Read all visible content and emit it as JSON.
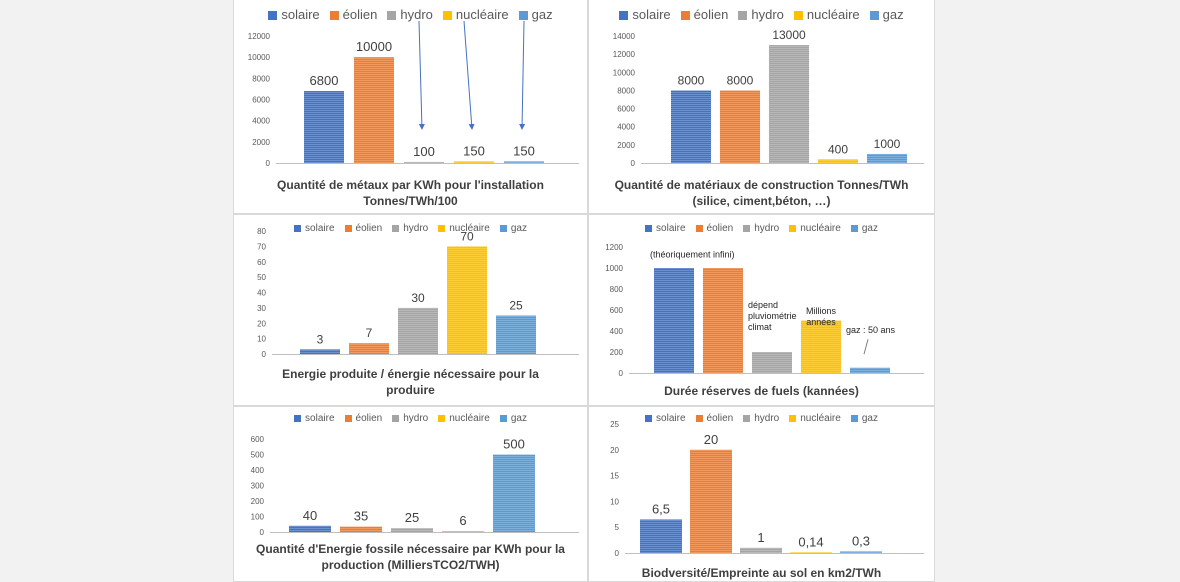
{
  "colors": {
    "solaire": "#4472c4",
    "eolien": "#ed7d31",
    "hydro": "#a5a5a5",
    "nucleaire": "#ffc000",
    "gaz": "#5b9bd5",
    "bar_stripe": "#ffffff",
    "arrow": "#4472c4"
  },
  "chart_data": [
    {
      "type": "bar",
      "title_lines": [
        "Quantité de métaux par KWh pour l'installation",
        "Tonnes/TWh/100"
      ],
      "legend": [
        "solaire",
        "éolien",
        "hydro",
        "nucléaire",
        "gaz"
      ],
      "series": [
        {
          "name": "solaire",
          "value": 6800,
          "label": "6800"
        },
        {
          "name": "éolien",
          "value": 10000,
          "label": "10000"
        },
        {
          "name": "hydro",
          "value": 100,
          "label": "100"
        },
        {
          "name": "nucléaire",
          "value": 150,
          "label": "150"
        },
        {
          "name": "gaz",
          "value": 150,
          "label": "150"
        }
      ],
      "y_ticks": [
        "0",
        "2000",
        "4000",
        "6000",
        "8000",
        "10000",
        "12000"
      ],
      "ylim": [
        0,
        12000
      ],
      "annotations": [],
      "arrows": 3
    },
    {
      "type": "bar",
      "title_lines": [
        "Quantité de matériaux de construction Tonnes/TWh",
        "(silice, ciment,béton, …)"
      ],
      "legend": [
        "solaire",
        "éolien",
        "hydro",
        "nucléaire",
        "gaz"
      ],
      "series": [
        {
          "name": "solaire",
          "value": 8000,
          "label": "8000"
        },
        {
          "name": "éolien",
          "value": 8000,
          "label": "8000"
        },
        {
          "name": "hydro",
          "value": 13000,
          "label": "13000"
        },
        {
          "name": "nucléaire",
          "value": 400,
          "label": "400"
        },
        {
          "name": "gaz",
          "value": 1000,
          "label": "1000"
        }
      ],
      "y_ticks": [
        "0",
        "2000",
        "4000",
        "6000",
        "8000",
        "10000",
        "12000",
        "14000"
      ],
      "ylim": [
        0,
        14000
      ],
      "annotations": []
    },
    {
      "type": "bar",
      "title_lines": [
        "Energie produite / énergie nécessaire pour la",
        "produire"
      ],
      "legend": [
        "solaire",
        "éolien",
        "hydro",
        "nucléaire",
        "gaz"
      ],
      "series": [
        {
          "name": "solaire",
          "value": 3,
          "label": "3"
        },
        {
          "name": "éolien",
          "value": 7,
          "label": "7"
        },
        {
          "name": "hydro",
          "value": 30,
          "label": "30"
        },
        {
          "name": "nucléaire",
          "value": 70,
          "label": "70"
        },
        {
          "name": "gaz",
          "value": 25,
          "label": "25"
        }
      ],
      "y_ticks": [
        "0",
        "10",
        "20",
        "30",
        "40",
        "50",
        "60",
        "70",
        "80"
      ],
      "ylim": [
        0,
        80
      ],
      "annotations": []
    },
    {
      "type": "bar",
      "title_lines": [
        "Durée réserves de fuels (kannées)"
      ],
      "legend": [
        "solaire",
        "éolien",
        "hydro",
        "nucléaire",
        "gaz"
      ],
      "series": [
        {
          "name": "solaire",
          "value": 1000,
          "label": ""
        },
        {
          "name": "éolien",
          "value": 1000,
          "label": ""
        },
        {
          "name": "hydro",
          "value": 200,
          "label": ""
        },
        {
          "name": "nucléaire",
          "value": 500,
          "label": ""
        },
        {
          "name": "gaz",
          "value": 50,
          "label": ""
        }
      ],
      "y_ticks": [
        "0",
        "200",
        "400",
        "600",
        "800",
        "1000",
        "1200"
      ],
      "ylim": [
        0,
        1200
      ],
      "annotations": [
        {
          "lines": [
            "(théoriquement infini)"
          ],
          "bar": 0,
          "value": 1100,
          "anchor": "start"
        },
        {
          "lines": [
            "dépend",
            "pluviométrie",
            "climat"
          ],
          "bar": 2,
          "value": 620,
          "anchor": "start"
        },
        {
          "lines": [
            "Millions",
            "années"
          ],
          "bar": 3,
          "value": 560,
          "anchor": "middle"
        },
        {
          "lines": [
            "gaz : 50 ans"
          ],
          "bar": 4,
          "value": 380,
          "anchor": "start"
        }
      ],
      "gaz_pointer": true
    },
    {
      "type": "bar",
      "title_lines": [
        "Quantité d'Energie fossile nécessaire par KWh pour la",
        "production (MilliersTCO2/TWH)"
      ],
      "legend": [
        "solaire",
        "éolien",
        "hydro",
        "nucléaire",
        "gaz"
      ],
      "series": [
        {
          "name": "solaire",
          "value": 40,
          "label": "40"
        },
        {
          "name": "éolien",
          "value": 35,
          "label": "35"
        },
        {
          "name": "hydro",
          "value": 25,
          "label": "25"
        },
        {
          "name": "nucléaire",
          "value": 6,
          "label": "6"
        },
        {
          "name": "gaz",
          "value": 500,
          "label": "500"
        }
      ],
      "y_ticks": [
        "0",
        "100",
        "200",
        "300",
        "400",
        "500",
        "600"
      ],
      "ylim": [
        0,
        600
      ],
      "annotations": []
    },
    {
      "type": "bar",
      "title_lines": [
        "Biodversité/Empreinte au sol en km2/TWh"
      ],
      "legend": [
        "solaire",
        "éolien",
        "hydro",
        "nucléaire",
        "gaz"
      ],
      "series": [
        {
          "name": "solaire",
          "value": 6.5,
          "label": "6,5"
        },
        {
          "name": "éolien",
          "value": 20,
          "label": "20"
        },
        {
          "name": "hydro",
          "value": 1,
          "label": "1"
        },
        {
          "name": "nucléaire",
          "value": 0.14,
          "label": "0,14"
        },
        {
          "name": "gaz",
          "value": 0.3,
          "label": "0,3"
        }
      ],
      "y_ticks": [
        "0",
        "5",
        "10",
        "15",
        "20",
        "25"
      ],
      "ylim": [
        0,
        25
      ],
      "annotations": []
    }
  ]
}
